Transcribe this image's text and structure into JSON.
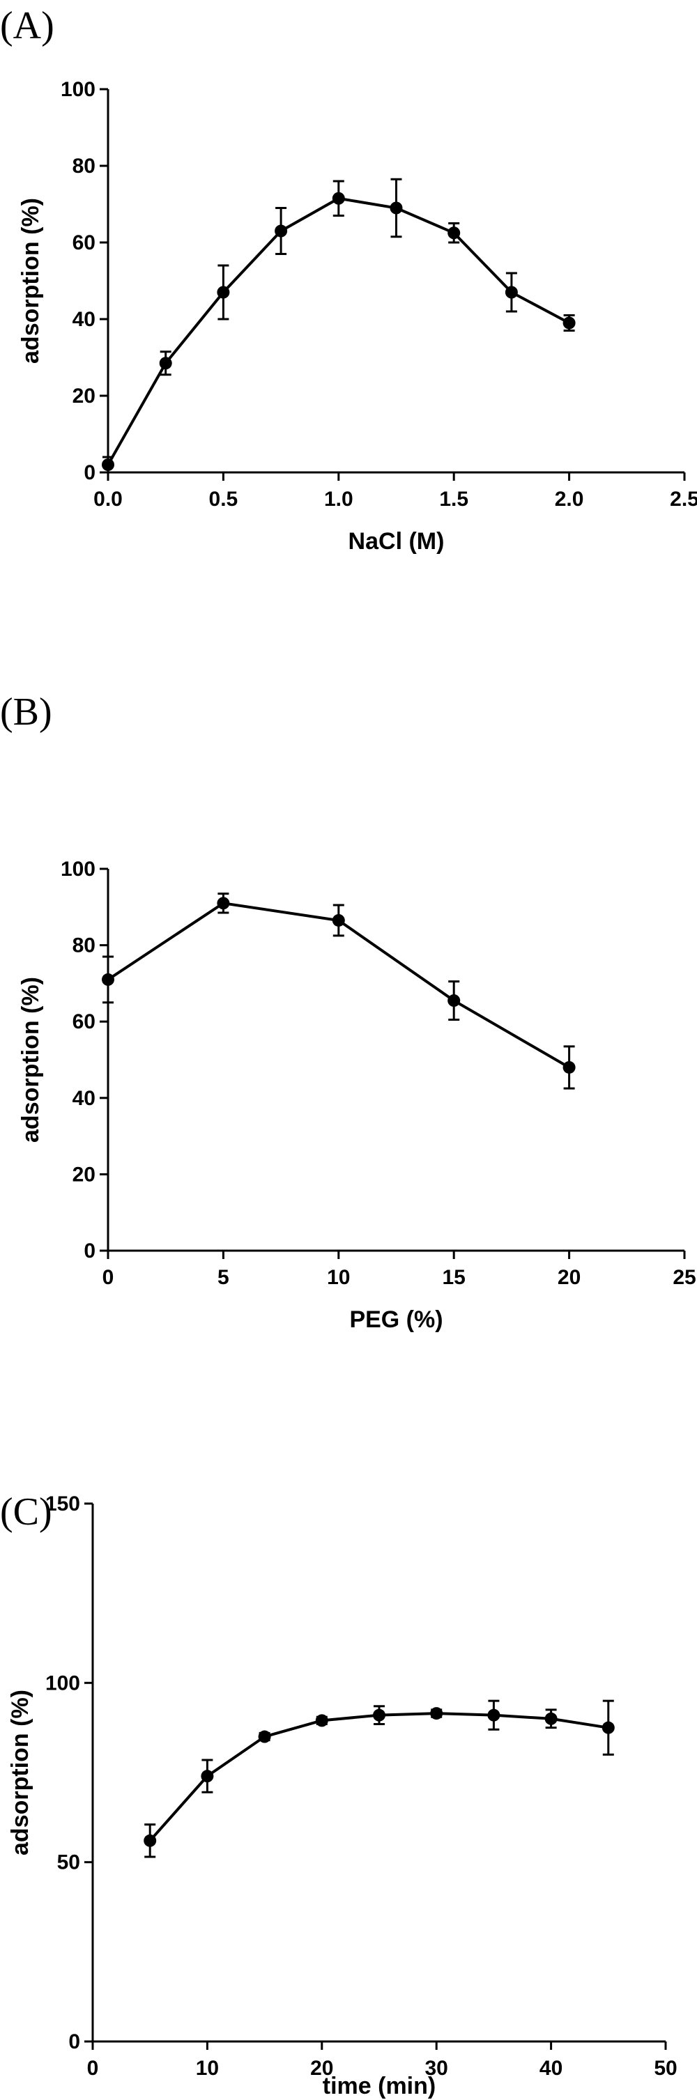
{
  "chart_data": [
    {
      "type": "line",
      "panel_label": "(A)",
      "title": "",
      "xlabel": "NaCl (M)",
      "ylabel": "adsorption (%)",
      "xlim": [
        0.0,
        2.5
      ],
      "ylim": [
        0,
        100
      ],
      "xticks": [
        0.0,
        0.5,
        1.0,
        1.5,
        2.0,
        2.5
      ],
      "xtick_labels": [
        "0.0",
        "0.5",
        "1.0",
        "1.5",
        "2.0",
        "2.5"
      ],
      "yticks": [
        0,
        20,
        40,
        60,
        80,
        100
      ],
      "ytick_labels": [
        "0",
        "20",
        "40",
        "60",
        "80",
        "100"
      ],
      "grid": false,
      "series": [
        {
          "x": [
            0.0,
            0.25,
            0.5,
            0.75,
            1.0,
            1.25,
            1.5,
            1.75,
            2.0
          ],
          "y": [
            2,
            28.5,
            47,
            63,
            71.5,
            69,
            62.5,
            47,
            39
          ],
          "err": [
            2,
            3,
            7,
            6,
            4.5,
            7.5,
            2.5,
            5,
            2
          ]
        }
      ]
    },
    {
      "type": "line",
      "panel_label": "(B)",
      "title": "",
      "xlabel": "PEG (%)",
      "ylabel": "adsorption (%)",
      "xlim": [
        0,
        25
      ],
      "ylim": [
        0,
        100
      ],
      "xticks": [
        0,
        5,
        10,
        15,
        20,
        25
      ],
      "xtick_labels": [
        "0",
        "5",
        "10",
        "15",
        "20",
        "25"
      ],
      "yticks": [
        0,
        20,
        40,
        60,
        80,
        100
      ],
      "ytick_labels": [
        "0",
        "20",
        "40",
        "60",
        "80",
        "100"
      ],
      "grid": false,
      "series": [
        {
          "x": [
            0,
            5,
            10,
            15,
            20
          ],
          "y": [
            71,
            91,
            86.5,
            65.5,
            48
          ],
          "err": [
            6,
            2.5,
            4,
            5,
            5.5
          ]
        }
      ]
    },
    {
      "type": "line",
      "panel_label": "(C)",
      "title": "",
      "xlabel": "time (min)",
      "ylabel": "adsorption (%)",
      "xlim": [
        0,
        50
      ],
      "ylim": [
        0,
        150
      ],
      "xticks": [
        0,
        10,
        20,
        30,
        40,
        50
      ],
      "xtick_labels": [
        "0",
        "10",
        "20",
        "30",
        "40",
        "50"
      ],
      "yticks": [
        0,
        50,
        100,
        150
      ],
      "ytick_labels": [
        "0",
        "50",
        "100",
        "150"
      ],
      "grid": false,
      "series": [
        {
          "x": [
            5,
            10,
            15,
            20,
            25,
            30,
            35,
            40,
            45
          ],
          "y": [
            56,
            74,
            85,
            89.5,
            91,
            91.5,
            91,
            90,
            87.5
          ],
          "err": [
            4.5,
            4.5,
            1,
            1,
            2.5,
            1,
            4,
            2.5,
            7.5
          ]
        }
      ]
    }
  ]
}
